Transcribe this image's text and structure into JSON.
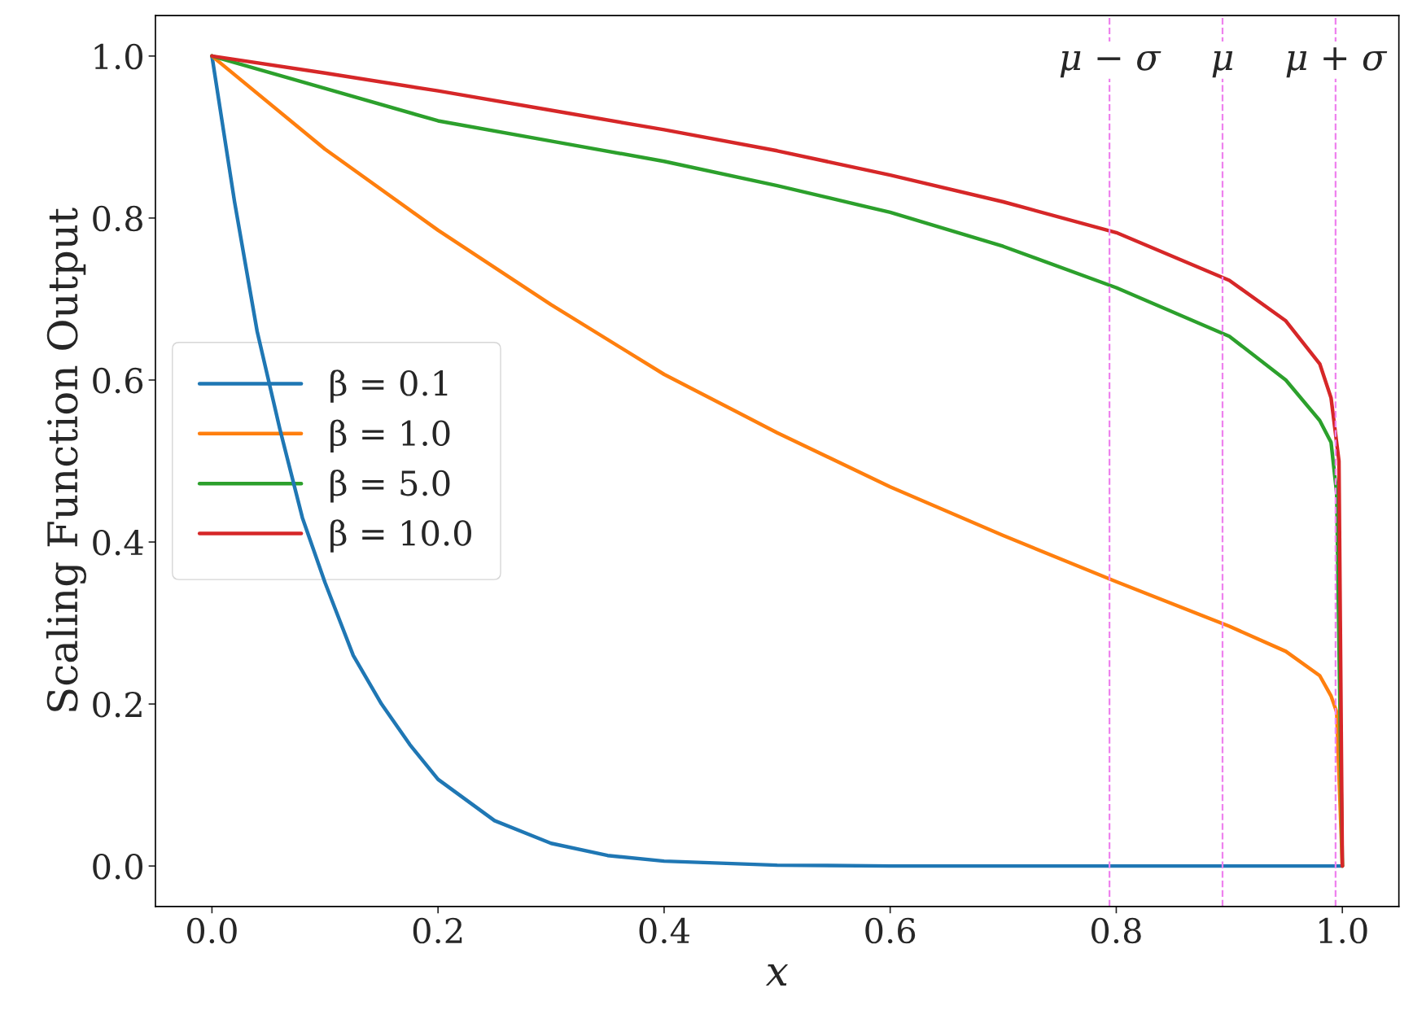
{
  "chart_data": {
    "type": "line",
    "xlabel": "x",
    "ylabel": "Scaling Function Output",
    "xlim": [
      -0.05,
      1.05
    ],
    "ylim": [
      -0.05,
      1.05
    ],
    "xticks": [
      {
        "value": 0,
        "label": "0.0"
      },
      0.2,
      0.4,
      0.6,
      0.8,
      {
        "value": 1,
        "label": "1.0"
      }
    ],
    "yticks": [
      {
        "value": 0,
        "label": "0.0"
      },
      0.2,
      0.4,
      0.6,
      0.8,
      {
        "value": 1,
        "label": "1.0"
      }
    ],
    "grid": false,
    "legend": "left",
    "line_style": "solid",
    "marker": "none",
    "series": [
      {
        "name": "β = 0.1",
        "color": "#1f77b4",
        "x": [
          0,
          0.02,
          0.04,
          0.06,
          0.08,
          0.1,
          0.125,
          0.15,
          0.175,
          0.2,
          0.25,
          0.3,
          0.35,
          0.4,
          0.5,
          0.6,
          0.7,
          0.8,
          0.9,
          1.0
        ],
        "values": [
          1,
          0.82,
          0.66,
          0.54,
          0.43,
          0.35,
          0.26,
          0.2,
          0.15,
          0.107,
          0.056,
          0.028,
          0.013,
          0.006,
          0.001,
          0,
          0,
          0,
          0,
          0
        ]
      },
      {
        "name": "β = 1.0",
        "color": "#ff7f0e",
        "x": [
          0,
          0.1,
          0.2,
          0.3,
          0.4,
          0.5,
          0.6,
          0.7,
          0.8,
          0.9,
          0.95,
          0.98,
          0.99,
          0.995,
          1.0
        ],
        "values": [
          1,
          0.885,
          0.785,
          0.693,
          0.607,
          0.535,
          0.468,
          0.408,
          0.351,
          0.296,
          0.265,
          0.235,
          0.21,
          0.19,
          0
        ]
      },
      {
        "name": "β = 5.0",
        "color": "#2ca02c",
        "x": [
          0,
          0.1,
          0.2,
          0.3,
          0.4,
          0.5,
          0.6,
          0.7,
          0.8,
          0.9,
          0.95,
          0.98,
          0.99,
          0.995,
          1.0
        ],
        "values": [
          1,
          0.96,
          0.92,
          0.895,
          0.87,
          0.84,
          0.807,
          0.765,
          0.714,
          0.654,
          0.6,
          0.55,
          0.523,
          0.46,
          0
        ]
      },
      {
        "name": "β = 10.0",
        "color": "#d62728",
        "x": [
          0,
          0.1,
          0.2,
          0.3,
          0.4,
          0.5,
          0.6,
          0.7,
          0.8,
          0.9,
          0.95,
          0.98,
          0.99,
          0.997,
          1.0
        ],
        "values": [
          1,
          0.979,
          0.957,
          0.933,
          0.909,
          0.883,
          0.853,
          0.82,
          0.782,
          0.723,
          0.673,
          0.62,
          0.578,
          0.5,
          0
        ]
      }
    ],
    "ref_lines": [
      {
        "axis": "x",
        "value": 0.794,
        "label": "μ − σ",
        "color": "#ee82ee",
        "line_style": "dashed"
      },
      {
        "axis": "x",
        "value": 0.894,
        "label": "μ",
        "color": "#ee82ee",
        "line_style": "dashed"
      },
      {
        "axis": "x",
        "value": 0.994,
        "label": "μ + σ",
        "color": "#ee82ee",
        "line_style": "dashed"
      }
    ]
  }
}
